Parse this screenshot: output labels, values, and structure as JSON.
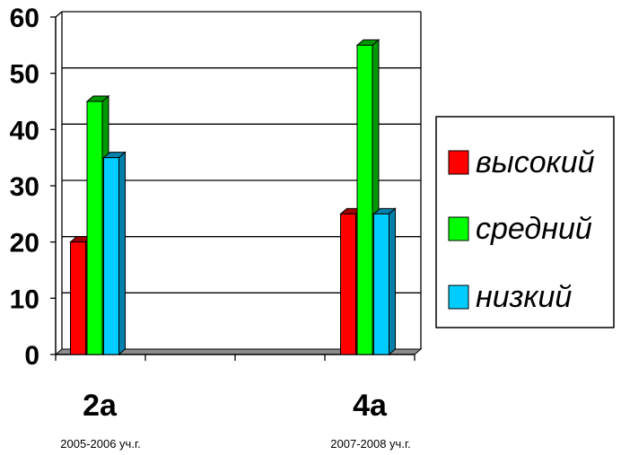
{
  "chart_data": {
    "type": "bar",
    "title": "",
    "xlabel": "",
    "ylabel": "",
    "ylim": [
      0,
      60
    ],
    "y_ticks": [
      "0",
      "10",
      "20",
      "30",
      "40",
      "50",
      "60"
    ],
    "categories": [
      "2а",
      "4а"
    ],
    "category_sublabels": [
      "2005-2006 уч.г.",
      "2007-2008 уч.г."
    ],
    "series": [
      {
        "name": "высокий",
        "values": [
          20,
          25
        ],
        "color": "#ff0000",
        "side_color": "#a00000"
      },
      {
        "name": "средний",
        "values": [
          45,
          55
        ],
        "color": "#00ff00",
        "side_color": "#009900"
      },
      {
        "name": "низкий",
        "values": [
          35,
          25
        ],
        "color": "#00ccff",
        "side_color": "#0080aa"
      }
    ],
    "grid": true,
    "legend_position": "right",
    "style": "3d-clustered-column"
  }
}
